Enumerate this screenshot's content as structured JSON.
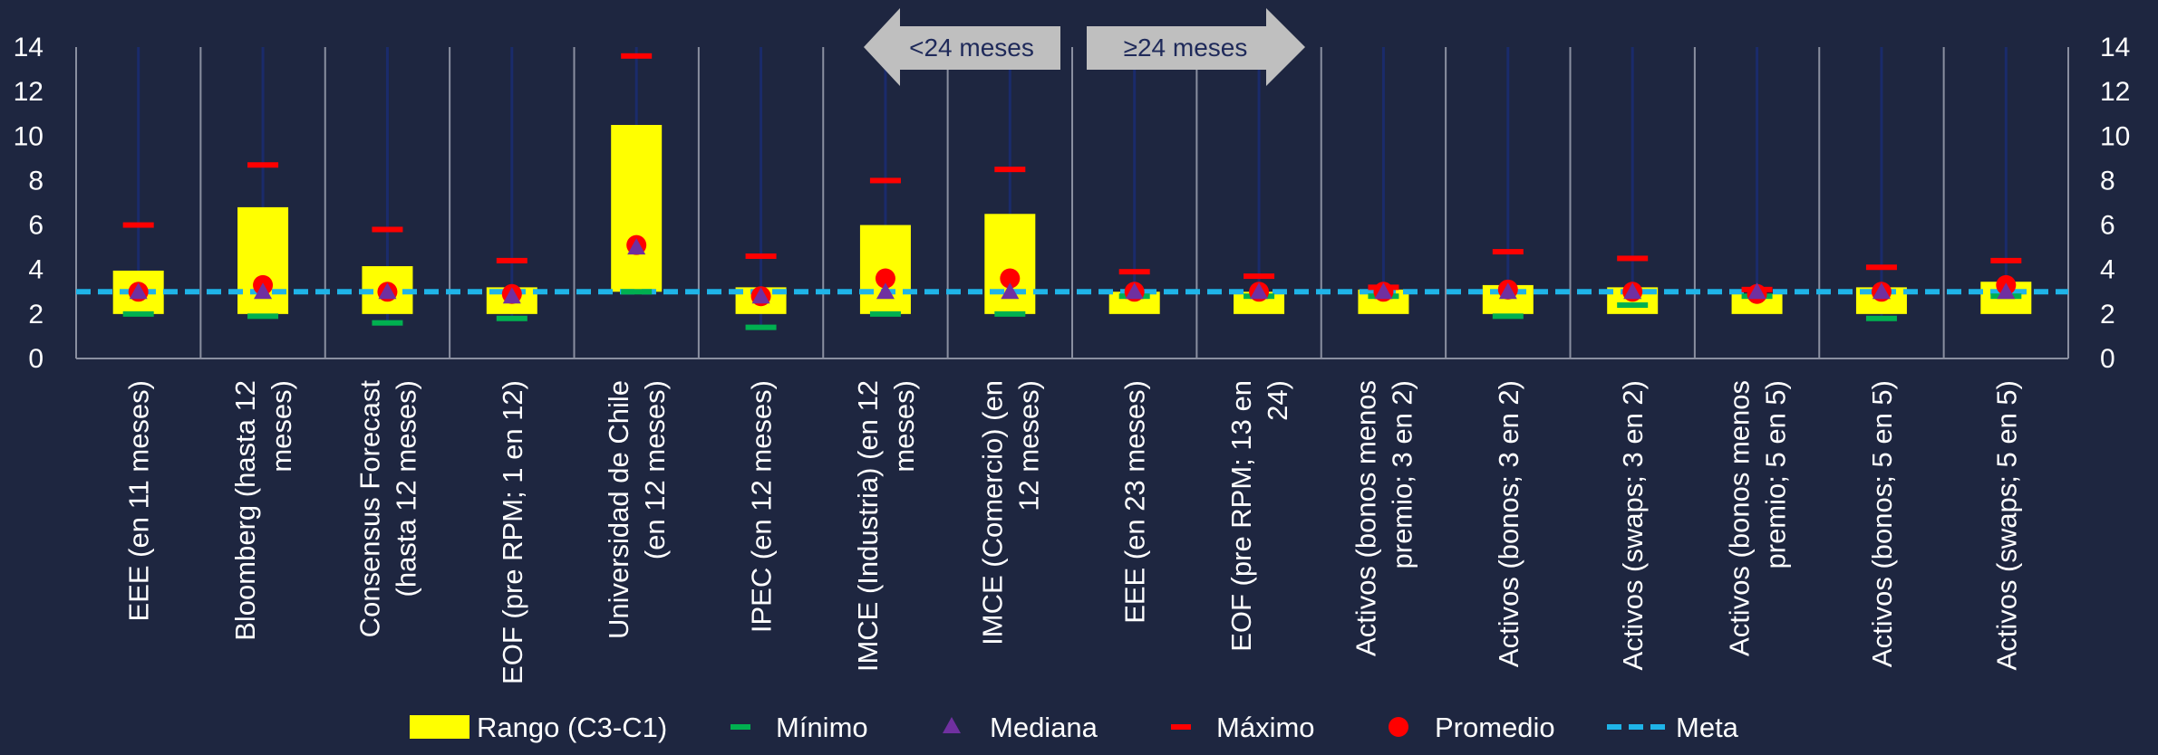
{
  "chart_data": {
    "type": "bar",
    "categories": [
      [
        "EEE (en 11 meses)"
      ],
      [
        "Bloomberg (hasta 12",
        "meses)"
      ],
      [
        "Consensus Forecast",
        "(hasta 12 meses)"
      ],
      [
        "EOF (pre RPM; 1 en 12)"
      ],
      [
        "Universidad de Chile",
        "(en 12 meses)"
      ],
      [
        "IPEC (en 12 meses)"
      ],
      [
        "IMCE (Industria) (en 12",
        "meses)"
      ],
      [
        "IMCE (Comercio) (en",
        "12 meses)"
      ],
      [
        "EEE (en 23 meses)"
      ],
      [
        "EOF (pre RPM; 13 en",
        "24)"
      ],
      [
        "Activos (bonos menos",
        "premio; 3 en 2)"
      ],
      [
        "Activos (bonos; 3 en 2)"
      ],
      [
        "Activos (swaps; 3 en 2)"
      ],
      [
        "Activos (bonos menos",
        "premio; 5 en 5)"
      ],
      [
        "Activos (bonos; 5 en 5)"
      ],
      [
        "Activos (swaps; 5 en 5)"
      ]
    ],
    "series": [
      {
        "name": "Rango (C3-C1)",
        "kind": "range-bar",
        "color": "#ffff00",
        "low": [
          2.0,
          2.0,
          2.0,
          2.0,
          3.0,
          2.0,
          2.0,
          2.0,
          2.0,
          2.0,
          2.0,
          2.0,
          2.0,
          2.0,
          2.0,
          2.0
        ],
        "high": [
          3.95,
          6.8,
          4.15,
          3.2,
          10.5,
          3.2,
          6.0,
          6.5,
          3.0,
          3.0,
          3.1,
          3.3,
          3.2,
          2.9,
          3.2,
          3.45
        ]
      },
      {
        "name": "Mínimo",
        "kind": "dash",
        "color": "#00b050",
        "values": [
          2.0,
          1.9,
          1.6,
          1.8,
          3.0,
          1.4,
          2.0,
          2.0,
          2.8,
          2.8,
          2.8,
          1.9,
          2.4,
          2.8,
          1.8,
          2.8
        ]
      },
      {
        "name": "Mediana",
        "kind": "triangle",
        "color": "#7030a0",
        "values": [
          3.0,
          3.0,
          3.0,
          2.8,
          5.0,
          2.8,
          3.0,
          3.0,
          3.0,
          3.0,
          3.0,
          3.0,
          3.0,
          3.0,
          3.0,
          3.0
        ]
      },
      {
        "name": "Máximo",
        "kind": "dash",
        "color": "#ff0000",
        "values": [
          6.0,
          8.7,
          5.8,
          4.4,
          13.6,
          4.6,
          8.0,
          8.5,
          3.9,
          3.7,
          3.2,
          4.8,
          4.5,
          3.1,
          4.1,
          4.4
        ]
      },
      {
        "name": "Promedio",
        "kind": "circle",
        "color": "#ff0000",
        "values": [
          3.0,
          3.3,
          3.0,
          2.9,
          5.1,
          2.8,
          3.6,
          3.6,
          3.0,
          3.0,
          3.0,
          3.1,
          3.0,
          2.9,
          3.0,
          3.3
        ]
      },
      {
        "name": "Meta",
        "kind": "dashed-line",
        "color": "#1fb4e8",
        "value": 3.0
      }
    ],
    "ylim": [
      0,
      14
    ],
    "yticks": [
      "0",
      "2",
      "4",
      "6",
      "8",
      "10",
      "12",
      "14"
    ],
    "dual_axis": true,
    "grid": "vertical-separators",
    "legend_position": "bottom",
    "annotations": {
      "left_arrow": "<24 meses",
      "right_arrow": "≥24 meses"
    },
    "colors": {
      "background": "#1e2640",
      "separator": "#8a8fa0",
      "whisker": "#1a2b6b",
      "arrow": "#bfbfbf",
      "text": "#ffffff"
    }
  }
}
